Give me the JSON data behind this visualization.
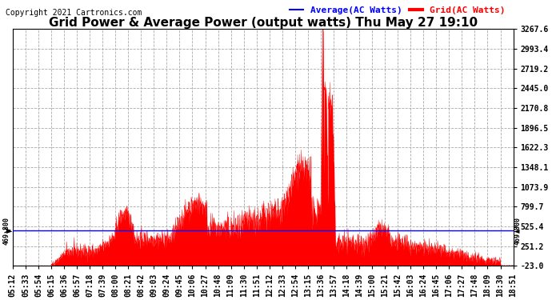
{
  "title": "Grid Power & Average Power (output watts) Thu May 27 19:10",
  "copyright": "Copyright 2021 Cartronics.com",
  "legend_avg": "Average(AC Watts)",
  "legend_grid": "Grid(AC Watts)",
  "avg_color": "#0000ff",
  "grid_color": "red",
  "background_color": "white",
  "yticks": [
    -23.0,
    251.2,
    525.4,
    799.7,
    1073.9,
    1348.1,
    1622.3,
    1896.5,
    2170.8,
    2445.0,
    2719.2,
    2993.4,
    3267.6
  ],
  "ymin": -23.0,
  "ymax": 3267.6,
  "hline_value": 469.8,
  "xtick_labels": [
    "05:12",
    "05:33",
    "05:54",
    "06:15",
    "06:36",
    "06:57",
    "07:18",
    "07:39",
    "08:00",
    "08:21",
    "08:42",
    "09:03",
    "09:24",
    "09:45",
    "10:06",
    "10:27",
    "10:48",
    "11:09",
    "11:30",
    "11:51",
    "12:12",
    "12:33",
    "12:54",
    "13:15",
    "13:36",
    "13:57",
    "14:18",
    "14:39",
    "15:00",
    "15:21",
    "15:42",
    "16:03",
    "16:24",
    "16:45",
    "17:06",
    "17:27",
    "17:48",
    "18:09",
    "18:30",
    "18:51"
  ],
  "dashed_grid_color": "#aaaaaa",
  "title_fontsize": 11,
  "tick_fontsize": 7,
  "legend_fontsize": 8,
  "copyright_fontsize": 7,
  "figsize": [
    6.9,
    3.75
  ],
  "dpi": 100
}
